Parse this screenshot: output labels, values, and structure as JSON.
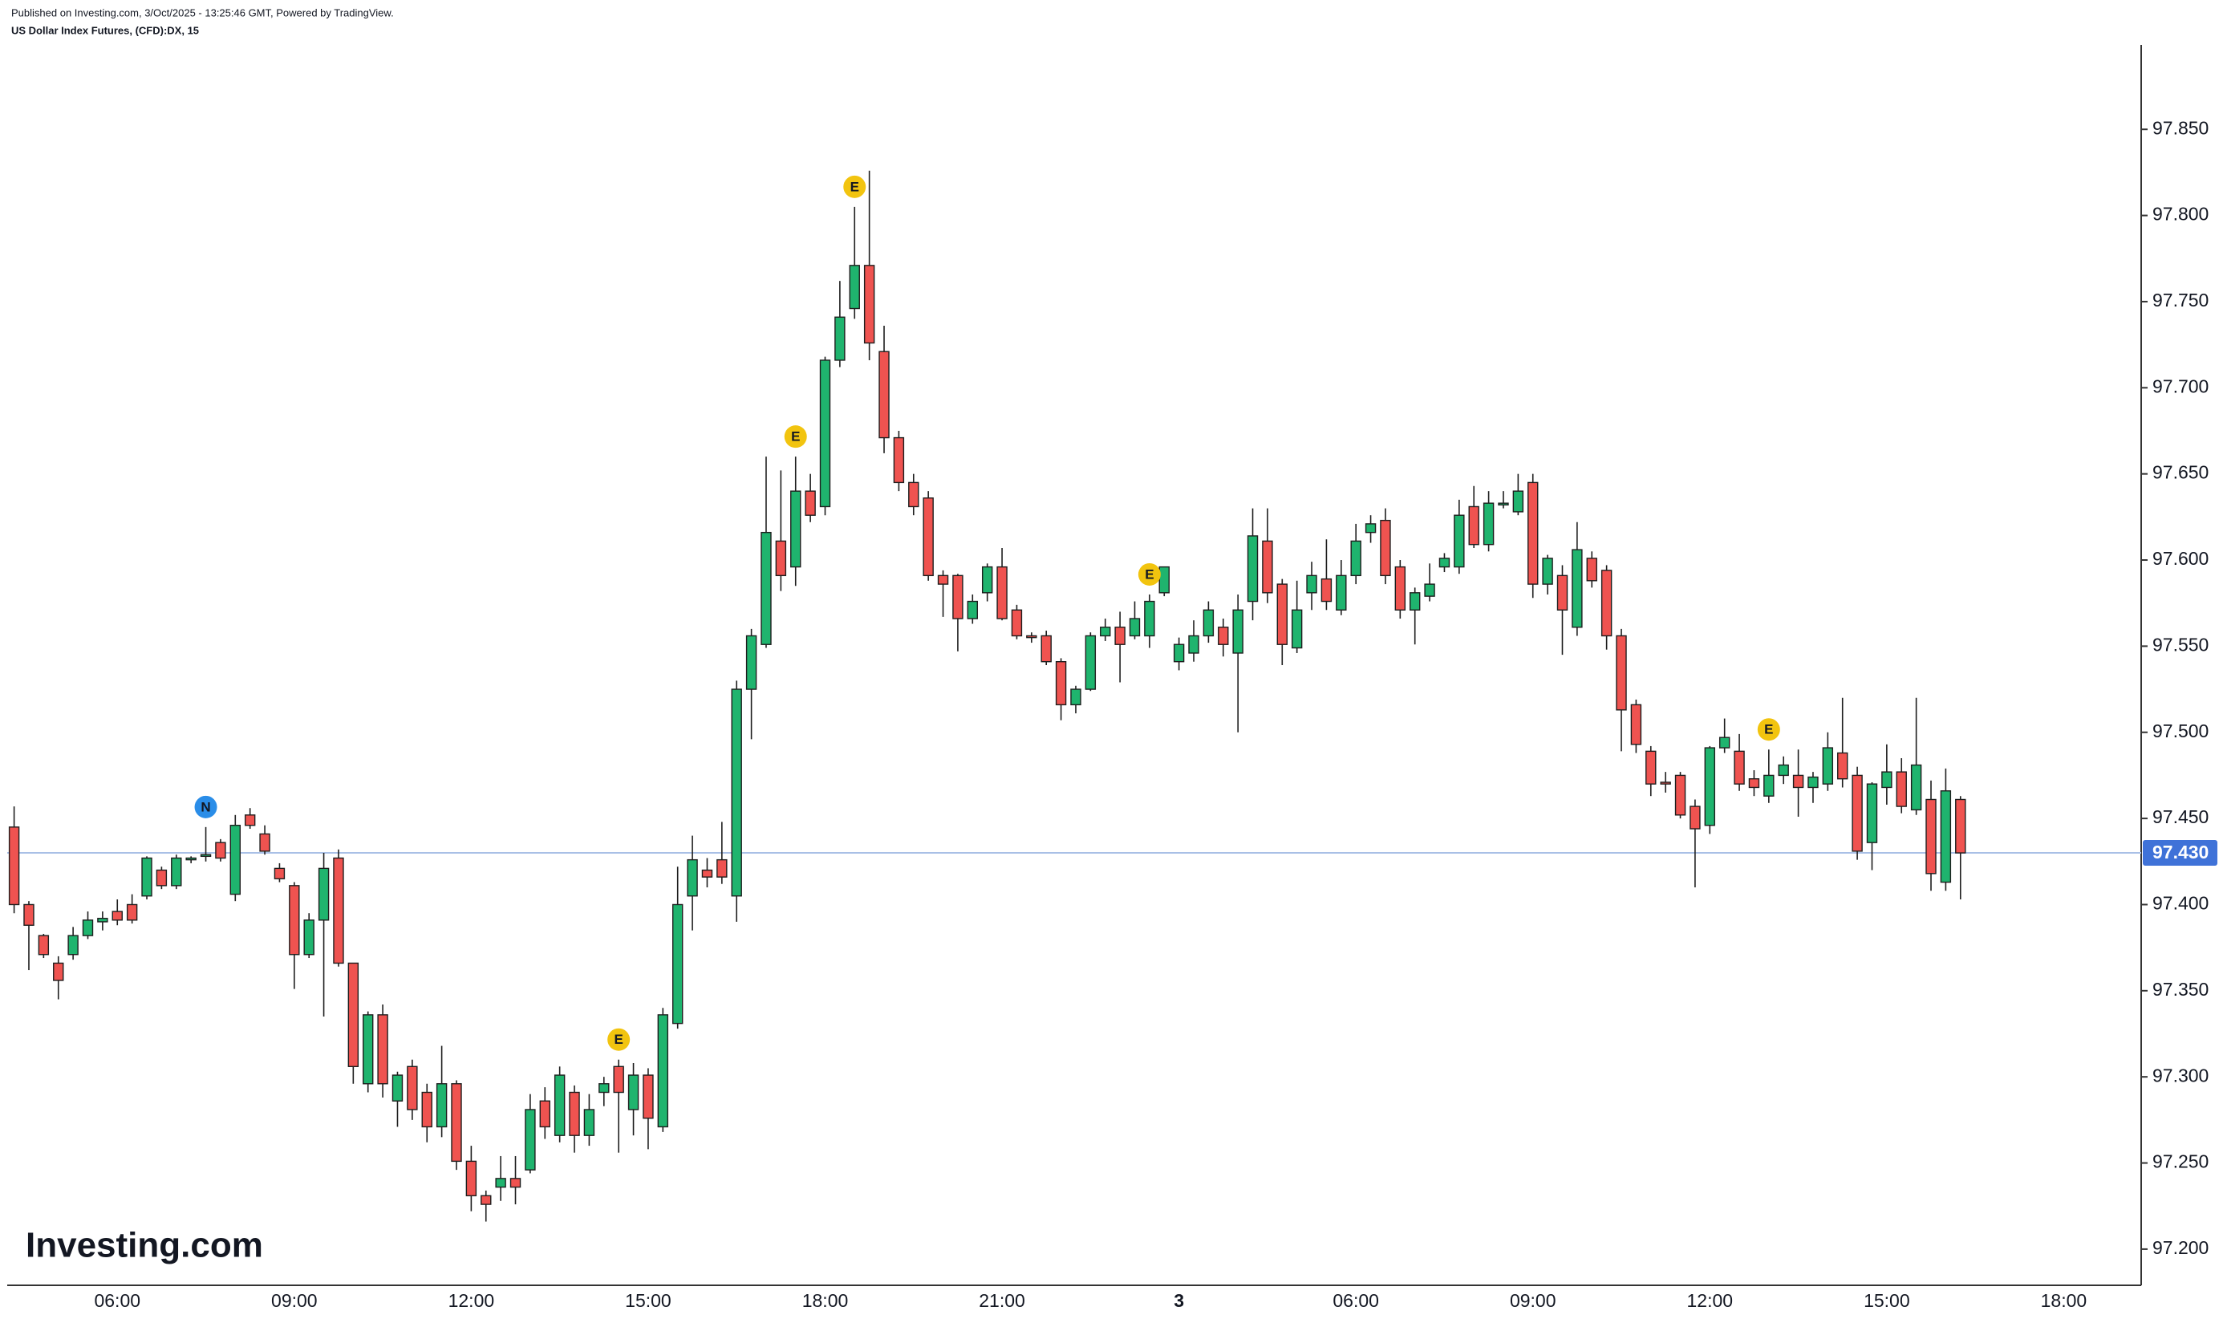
{
  "header": {
    "published": "Published on Investing.com, 3/Oct/2025 - 13:25:46 GMT, Powered by TradingView.",
    "title": "US Dollar Index Futures, (CFD):DX, 15"
  },
  "logo": "Investing.com",
  "chart_data": {
    "type": "candlestick",
    "categories": [
      null,
      null,
      null,
      null,
      null,
      null,
      null,
      "06:00",
      null,
      null,
      null,
      null,
      null,
      null,
      null,
      null,
      null,
      null,
      null,
      "09:00",
      null,
      null,
      null,
      null,
      null,
      null,
      null,
      null,
      null,
      null,
      null,
      "12:00",
      null,
      null,
      null,
      null,
      null,
      null,
      null,
      null,
      null,
      null,
      null,
      "15:00",
      null,
      null,
      null,
      null,
      null,
      null,
      null,
      null,
      null,
      null,
      null,
      "18:00",
      null,
      null,
      null,
      null,
      null,
      null,
      null,
      null,
      null,
      null,
      null,
      "21:00",
      null,
      null,
      null,
      null,
      null,
      null,
      null,
      null,
      null,
      null,
      null,
      "3",
      null,
      null,
      null,
      null,
      null,
      null,
      null,
      null,
      null,
      null,
      null,
      "06:00",
      null,
      null,
      null,
      null,
      null,
      null,
      null,
      null,
      null,
      null,
      null,
      "09:00",
      null,
      null,
      null,
      null,
      null,
      null,
      null,
      null,
      null,
      null,
      null,
      "12:00",
      null,
      null,
      null,
      null,
      null,
      null,
      null,
      null,
      null,
      null,
      null,
      "15:00",
      null,
      null,
      null,
      null,
      null,
      null,
      null,
      null,
      null,
      null,
      null,
      "18:00"
    ],
    "open": [
      97.445,
      97.4,
      97.382,
      97.366,
      97.371,
      97.382,
      97.39,
      97.396,
      97.4,
      97.405,
      97.42,
      97.411,
      97.426,
      97.428,
      97.436,
      97.406,
      97.452,
      97.441,
      97.421,
      97.411,
      97.371,
      97.391,
      97.427,
      97.366,
      97.296,
      97.336,
      97.286,
      97.306,
      97.291,
      97.271,
      97.296,
      97.251,
      97.231,
      97.236,
      97.241,
      97.246,
      97.286,
      97.266,
      97.291,
      97.266,
      97.291,
      97.306,
      97.281,
      97.301,
      97.271,
      97.331,
      97.405,
      97.42,
      97.426,
      97.405,
      97.525,
      97.551,
      97.611,
      97.596,
      97.64,
      97.631,
      97.716,
      97.746,
      97.771,
      97.721,
      97.671,
      97.645,
      97.636,
      97.591,
      97.591,
      97.566,
      97.581,
      97.596,
      97.571,
      97.556,
      97.556,
      97.541,
      97.516,
      97.525,
      97.556,
      97.561,
      97.556,
      97.556,
      97.581,
      97.541,
      97.546,
      97.556,
      97.561,
      97.546,
      97.576,
      97.611,
      97.586,
      97.549,
      97.581,
      97.589,
      97.571,
      97.591,
      97.616,
      97.623,
      97.596,
      97.571,
      97.579,
      97.596,
      97.596,
      97.631,
      97.609,
      97.632,
      97.628,
      97.645,
      97.586,
      97.591,
      97.561,
      97.601,
      97.594,
      97.556,
      97.516,
      97.489,
      97.471,
      97.475,
      97.457,
      97.446,
      97.491,
      97.489,
      97.473,
      97.463,
      97.475,
      97.475,
      97.468,
      97.47,
      97.488,
      97.475,
      97.436,
      97.468,
      97.477,
      97.455,
      97.461,
      97.413,
      97.461,
      null,
      null,
      null,
      null,
      null,
      null,
      null
    ],
    "high": [
      97.457,
      97.402,
      97.383,
      97.37,
      97.387,
      97.396,
      97.396,
      97.403,
      97.406,
      97.428,
      97.422,
      97.429,
      97.428,
      97.445,
      97.438,
      97.452,
      97.456,
      97.446,
      97.424,
      97.413,
      97.395,
      97.43,
      97.432,
      97.366,
      97.338,
      97.342,
      97.303,
      97.31,
      97.296,
      97.318,
      97.298,
      97.26,
      97.234,
      97.254,
      97.254,
      97.29,
      97.294,
      97.306,
      97.295,
      97.29,
      97.3,
      97.31,
      97.308,
      97.305,
      97.34,
      97.422,
      97.44,
      97.427,
      97.448,
      97.53,
      97.56,
      97.66,
      97.652,
      97.66,
      97.65,
      97.718,
      97.762,
      97.805,
      97.826,
      97.736,
      97.675,
      97.65,
      97.64,
      97.594,
      97.592,
      97.58,
      97.598,
      97.607,
      97.574,
      97.558,
      97.559,
      97.543,
      97.527,
      97.558,
      97.566,
      97.57,
      97.576,
      97.58,
      97.596,
      97.555,
      97.565,
      97.576,
      97.566,
      97.58,
      97.63,
      97.63,
      97.589,
      97.588,
      97.599,
      97.612,
      97.6,
      97.621,
      97.626,
      97.63,
      97.6,
      97.584,
      97.598,
      97.604,
      97.635,
      97.643,
      97.64,
      97.64,
      97.65,
      97.65,
      97.603,
      97.597,
      97.622,
      97.605,
      97.597,
      97.56,
      97.519,
      97.492,
      97.477,
      97.477,
      97.461,
      97.492,
      97.508,
      97.499,
      97.478,
      97.49,
      97.486,
      97.49,
      97.477,
      97.5,
      97.52,
      97.48,
      97.471,
      97.493,
      97.485,
      97.52,
      97.472,
      97.479,
      97.463,
      null,
      null,
      null,
      null,
      null,
      null,
      null
    ],
    "low": [
      97.395,
      97.362,
      97.369,
      97.345,
      97.368,
      97.38,
      97.385,
      97.388,
      97.389,
      97.403,
      97.409,
      97.409,
      97.424,
      97.425,
      97.425,
      97.402,
      97.444,
      97.429,
      97.413,
      97.351,
      97.369,
      97.335,
      97.364,
      97.296,
      97.291,
      97.288,
      97.271,
      97.275,
      97.262,
      97.265,
      97.246,
      97.222,
      97.216,
      97.228,
      97.226,
      97.244,
      97.264,
      97.262,
      97.256,
      97.26,
      97.283,
      97.256,
      97.266,
      97.258,
      97.268,
      97.328,
      97.385,
      97.41,
      97.412,
      97.39,
      97.496,
      97.549,
      97.582,
      97.585,
      97.622,
      97.626,
      97.712,
      97.74,
      97.716,
      97.662,
      97.64,
      97.626,
      97.588,
      97.567,
      97.547,
      97.563,
      97.576,
      97.565,
      97.554,
      97.552,
      97.539,
      97.507,
      97.511,
      97.524,
      97.553,
      97.529,
      97.554,
      97.549,
      97.579,
      97.536,
      97.541,
      97.552,
      97.544,
      97.5,
      97.565,
      97.575,
      97.539,
      97.546,
      97.571,
      97.571,
      97.568,
      97.586,
      97.61,
      97.586,
      97.566,
      97.551,
      97.576,
      97.593,
      97.592,
      97.607,
      97.605,
      97.63,
      97.626,
      97.578,
      97.58,
      97.545,
      97.556,
      97.584,
      97.548,
      97.489,
      97.488,
      97.463,
      97.465,
      97.45,
      97.41,
      97.441,
      97.488,
      97.466,
      97.463,
      97.459,
      97.47,
      97.451,
      97.459,
      97.466,
      97.468,
      97.426,
      97.42,
      97.458,
      97.453,
      97.452,
      97.408,
      97.408,
      97.403,
      null,
      null,
      null,
      null,
      null,
      null,
      null
    ],
    "close": [
      97.4,
      97.388,
      97.371,
      97.356,
      97.382,
      97.391,
      97.392,
      97.391,
      97.391,
      97.427,
      97.411,
      97.427,
      97.427,
      97.429,
      97.427,
      97.446,
      97.446,
      97.431,
      97.415,
      97.371,
      97.391,
      97.421,
      97.366,
      97.306,
      97.336,
      97.296,
      97.301,
      97.281,
      97.271,
      97.296,
      97.251,
      97.231,
      97.226,
      97.241,
      97.236,
      97.281,
      97.271,
      97.301,
      97.266,
      97.281,
      97.296,
      97.291,
      97.301,
      97.276,
      97.336,
      97.4,
      97.426,
      97.416,
      97.416,
      97.525,
      97.556,
      97.616,
      97.591,
      97.64,
      97.626,
      97.716,
      97.741,
      97.771,
      97.726,
      97.671,
      97.645,
      97.631,
      97.591,
      97.586,
      97.566,
      97.576,
      97.596,
      97.566,
      97.556,
      97.555,
      97.541,
      97.516,
      97.525,
      97.556,
      97.561,
      97.551,
      97.566,
      97.576,
      97.596,
      97.551,
      97.556,
      97.571,
      97.551,
      97.571,
      97.614,
      97.581,
      97.551,
      97.571,
      97.591,
      97.576,
      97.591,
      97.611,
      97.621,
      97.591,
      97.571,
      97.581,
      97.586,
      97.601,
      97.626,
      97.609,
      97.633,
      97.633,
      97.64,
      97.586,
      97.601,
      97.571,
      97.606,
      97.588,
      97.556,
      97.513,
      97.493,
      97.47,
      97.47,
      97.452,
      97.444,
      97.491,
      97.497,
      97.47,
      97.468,
      97.475,
      97.481,
      97.468,
      97.474,
      97.491,
      97.473,
      97.431,
      97.47,
      97.477,
      97.457,
      97.481,
      97.418,
      97.466,
      97.43,
      null,
      null,
      null,
      null,
      null,
      null,
      null
    ],
    "events": [
      null,
      null,
      null,
      null,
      null,
      null,
      null,
      null,
      null,
      null,
      null,
      null,
      null,
      "N",
      null,
      null,
      null,
      null,
      null,
      null,
      null,
      null,
      null,
      null,
      null,
      null,
      null,
      null,
      null,
      null,
      null,
      null,
      null,
      null,
      null,
      null,
      null,
      null,
      null,
      null,
      null,
      "E",
      null,
      null,
      null,
      null,
      null,
      null,
      null,
      null,
      null,
      null,
      null,
      "E",
      null,
      null,
      null,
      "E",
      null,
      null,
      null,
      null,
      null,
      null,
      null,
      null,
      null,
      null,
      null,
      null,
      null,
      null,
      null,
      null,
      null,
      null,
      null,
      "E",
      null,
      null,
      null,
      null,
      null,
      null,
      null,
      null,
      null,
      null,
      null,
      null,
      null,
      null,
      null,
      null,
      null,
      null,
      null,
      null,
      null,
      null,
      null,
      null,
      null,
      null,
      null,
      null,
      null,
      null,
      null,
      null,
      null,
      null,
      null,
      null,
      null,
      null,
      null,
      null,
      null,
      "E",
      null,
      null,
      null,
      null,
      null,
      null,
      null,
      null,
      null,
      null,
      null,
      null,
      null,
      null,
      null,
      null,
      null,
      null,
      null,
      null
    ],
    "event_colors": {
      "E": "#f2c40f",
      "N": "#2a8de8"
    },
    "up_color": "#1fb46e",
    "down_color": "#ef5350",
    "wick_color": "#1e1e1e",
    "ylim": [
      97.179,
      97.899
    ],
    "yticks": [
      {
        "value": 97.2,
        "label": "97.200"
      },
      {
        "value": 97.25,
        "label": "97.250"
      },
      {
        "value": 97.3,
        "label": "97.300"
      },
      {
        "value": 97.35,
        "label": "97.350"
      },
      {
        "value": 97.4,
        "label": "97.400"
      },
      {
        "value": 97.45,
        "label": "97.450"
      },
      {
        "value": 97.5,
        "label": "97.500"
      },
      {
        "value": 97.55,
        "label": "97.550"
      },
      {
        "value": 97.6,
        "label": "97.600"
      },
      {
        "value": 97.65,
        "label": "97.650"
      },
      {
        "value": 97.7,
        "label": "97.700"
      },
      {
        "value": 97.75,
        "label": "97.750"
      },
      {
        "value": 97.8,
        "label": "97.800"
      },
      {
        "value": 97.85,
        "label": "97.850"
      }
    ],
    "last_price": {
      "value": 97.43,
      "label": "97.430"
    },
    "last_price_color": "#3f72d8",
    "last_line_color": "#a9c0e6"
  }
}
